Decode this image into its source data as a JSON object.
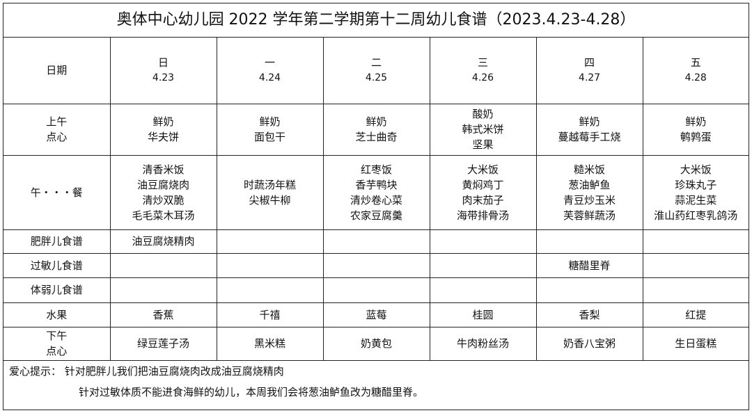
{
  "title": "奥体中心幼儿园 2022 学年第二学期第十二周幼儿食谱（2023.4.23-4.28）",
  "header": {
    "label": "日期",
    "days": [
      {
        "day": "日",
        "date": "4.23"
      },
      {
        "day": "一",
        "date": "4.24"
      },
      {
        "day": "二",
        "date": "4.25"
      },
      {
        "day": "三",
        "date": "4.26"
      },
      {
        "day": "四",
        "date": "4.27"
      },
      {
        "day": "五",
        "date": "4.28"
      }
    ]
  },
  "morning": {
    "label_1": "上午",
    "label_2": "点心",
    "cells": [
      [
        "鲜奶",
        "华夫饼"
      ],
      [
        "鲜奶",
        "面包干"
      ],
      [
        "鲜奶",
        "芝士曲奇"
      ],
      [
        "酸奶",
        "韩式米饼",
        "坚果"
      ],
      [
        "鲜奶",
        "蔓越莓手工烧"
      ],
      [
        "鲜奶",
        "鹌鹑蛋"
      ]
    ]
  },
  "lunch": {
    "label": "午・・・餐",
    "cells": [
      [
        "清香米饭",
        "油豆腐烧肉",
        "清炒双脆",
        "毛毛菜木耳汤"
      ],
      [
        "时蔬汤年糕",
        "尖椒牛柳"
      ],
      [
        "红枣饭",
        "香芋鸭块",
        "清炒卷心菜",
        "农家豆腐羹"
      ],
      [
        "大米饭",
        "黄焖鸡丁",
        "肉末茄子",
        "海带排骨汤"
      ],
      [
        "糙米饭",
        "葱油鲈鱼",
        "青豆炒玉米",
        "芙蓉鲜蔬汤"
      ],
      [
        "大米饭",
        "珍珠丸子",
        "蒜泥生菜",
        "淮山药红枣乳鸽汤"
      ]
    ]
  },
  "obese": {
    "label": "肥胖儿食谱",
    "cells": [
      "油豆腐烧精肉",
      "",
      "",
      "",
      "",
      ""
    ]
  },
  "allergy": {
    "label": "过敏儿食谱",
    "cells": [
      "",
      "",
      "",
      "",
      "糖醋里脊",
      ""
    ]
  },
  "weak": {
    "label": "体弱儿食谱",
    "cells": [
      "",
      "",
      "",
      "",
      "",
      ""
    ]
  },
  "fruit": {
    "label": "水果",
    "cells": [
      "香蕉",
      "千禧",
      "蓝莓",
      "桂圆",
      "香梨",
      "红提"
    ]
  },
  "afternoon": {
    "label_1": "下午",
    "label_2": "点心",
    "cells": [
      "绿豆莲子汤",
      "黑米糕",
      "奶黄包",
      "牛肉粉丝汤",
      "奶香八宝粥",
      "生日蛋糕"
    ]
  },
  "notes": {
    "prefix": "爱心提示：",
    "line_1": "针对肥胖儿我们把油豆腐烧肉改成油豆腐烧精肉",
    "line_2": "针对过敏体质不能进食海鲜的幼儿，本周我们会将葱油鲈鱼改为糖醋里脊。"
  }
}
